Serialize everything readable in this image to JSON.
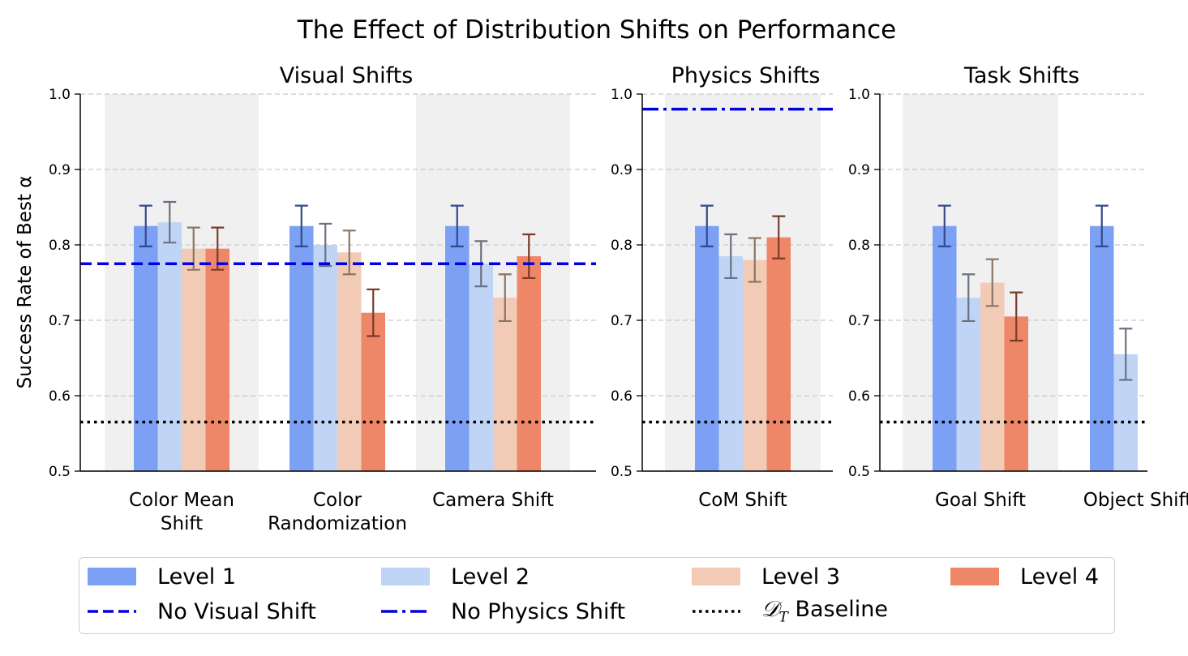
{
  "title": "The Effect of Distribution Shifts on Performance",
  "ylabel": "Success Rate of Best α",
  "colors": {
    "level1": "#7ba0f4",
    "level2": "#c0d5f5",
    "level3": "#f2cbb6",
    "level4": "#ee8668",
    "visual_line": "#0000e0",
    "physics_line": "#0000e0",
    "baseline_line": "#000000",
    "shade": "#f0f0f0"
  },
  "legend": {
    "level1": "Level 1",
    "level2": "Level 2",
    "level3": "Level 3",
    "level4": "Level 4",
    "no_visual": "No Visual Shift",
    "no_physics": "No Physics Shift",
    "baseline_prefix": "𝒟",
    "baseline_sub": "T",
    "baseline_suffix": " Baseline"
  },
  "chart_data": [
    {
      "type": "bar",
      "title": "Visual Shifts",
      "categories": [
        "Color Mean Shift",
        "Color Randomization",
        "Camera Shift"
      ],
      "category_label_lines": [
        [
          "Color Mean",
          "Shift"
        ],
        [
          "Color",
          "Randomization"
        ],
        [
          "Camera Shift"
        ]
      ],
      "ylim": [
        0.5,
        1.0
      ],
      "yticks": [
        "0.5",
        "0.6",
        "0.7",
        "0.8",
        "0.9",
        "1.0"
      ],
      "grid": true,
      "series": [
        {
          "name": "Level 1",
          "values": [
            0.825,
            0.825,
            0.825
          ],
          "errors": [
            0.027,
            0.027,
            0.027
          ]
        },
        {
          "name": "Level 2",
          "values": [
            0.83,
            0.8,
            0.775
          ],
          "errors": [
            0.027,
            0.028,
            0.03
          ]
        },
        {
          "name": "Level 3",
          "values": [
            0.795,
            0.79,
            0.73
          ],
          "errors": [
            0.028,
            0.029,
            0.031
          ]
        },
        {
          "name": "Level 4",
          "values": [
            0.795,
            0.71,
            0.785
          ],
          "errors": [
            0.028,
            0.031,
            0.029
          ]
        }
      ],
      "reference_lines": [
        {
          "name": "No Visual Shift",
          "y": 0.775,
          "style": "dashed"
        },
        {
          "name": "𝒟T Baseline",
          "y": 0.565,
          "style": "dotted"
        }
      ],
      "shaded_categories": [
        0,
        2
      ]
    },
    {
      "type": "bar",
      "title": "Physics Shifts",
      "categories": [
        "CoM Shift"
      ],
      "category_label_lines": [
        [
          "CoM Shift"
        ]
      ],
      "ylim": [
        0.5,
        1.0
      ],
      "yticks": [
        "0.5",
        "0.6",
        "0.7",
        "0.8",
        "0.9",
        "1.0"
      ],
      "grid": true,
      "series": [
        {
          "name": "Level 1",
          "values": [
            0.825
          ],
          "errors": [
            0.027
          ]
        },
        {
          "name": "Level 2",
          "values": [
            0.785
          ],
          "errors": [
            0.029
          ]
        },
        {
          "name": "Level 3",
          "values": [
            0.78
          ],
          "errors": [
            0.029
          ]
        },
        {
          "name": "Level 4",
          "values": [
            0.81
          ],
          "errors": [
            0.028
          ]
        }
      ],
      "reference_lines": [
        {
          "name": "No Physics Shift",
          "y": 0.98,
          "style": "dashdot"
        },
        {
          "name": "𝒟T Baseline",
          "y": 0.565,
          "style": "dotted"
        }
      ],
      "shaded_categories": [
        0
      ]
    },
    {
      "type": "bar",
      "title": "Task Shifts",
      "categories": [
        "Goal Shift",
        "Object Shift"
      ],
      "category_label_lines": [
        [
          "Goal Shift"
        ],
        [
          "Object Shift"
        ]
      ],
      "ylim": [
        0.5,
        1.0
      ],
      "yticks": [
        "0.5",
        "0.6",
        "0.7",
        "0.8",
        "0.9",
        "1.0"
      ],
      "grid": true,
      "series": [
        {
          "name": "Level 1",
          "values": [
            0.825,
            0.825
          ],
          "errors": [
            0.027,
            0.027
          ]
        },
        {
          "name": "Level 2",
          "values": [
            0.73,
            0.655
          ],
          "errors": [
            0.031,
            0.034
          ]
        },
        {
          "name": "Level 3",
          "values": [
            0.75,
            null
          ],
          "errors": [
            0.031,
            null
          ]
        },
        {
          "name": "Level 4",
          "values": [
            0.705,
            null
          ],
          "errors": [
            0.032,
            null
          ]
        }
      ],
      "reference_lines": [
        {
          "name": "𝒟T Baseline",
          "y": 0.565,
          "style": "dotted"
        }
      ],
      "shaded_categories": [
        0
      ]
    }
  ]
}
